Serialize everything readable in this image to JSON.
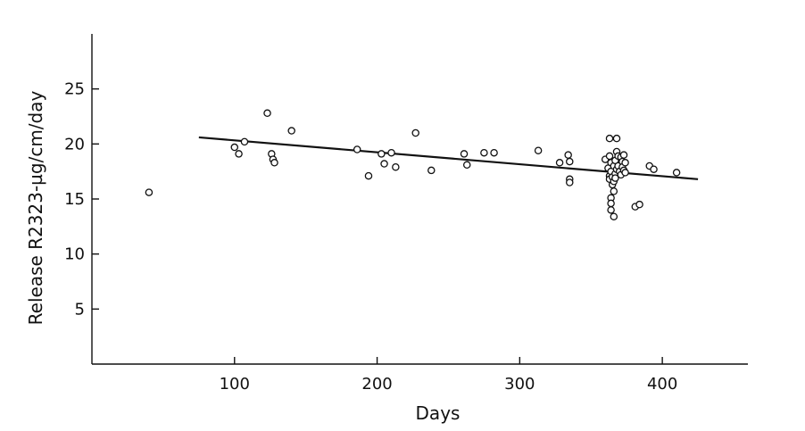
{
  "chart_data": {
    "type": "scatter",
    "title": "",
    "xlabel": "Days",
    "ylabel": "Release R2323-µg/cm/day",
    "xlim": [
      0,
      460
    ],
    "ylim": [
      0,
      30
    ],
    "xticks": [
      100,
      200,
      300,
      400
    ],
    "yticks": [
      5,
      10,
      15,
      20,
      25
    ],
    "grid": false,
    "series": [
      {
        "points": [
          [
            40,
            15.6
          ],
          [
            100,
            19.7
          ],
          [
            103,
            19.1
          ],
          [
            107,
            20.2
          ],
          [
            123,
            22.8
          ],
          [
            126,
            19.1
          ],
          [
            127,
            18.6
          ],
          [
            128,
            18.3
          ],
          [
            140,
            21.2
          ],
          [
            186,
            19.5
          ],
          [
            194,
            17.1
          ],
          [
            203,
            19.1
          ],
          [
            205,
            18.2
          ],
          [
            210,
            19.2
          ],
          [
            213,
            17.9
          ],
          [
            227,
            21.0
          ],
          [
            238,
            17.6
          ],
          [
            261,
            19.1
          ],
          [
            263,
            18.1
          ],
          [
            275,
            19.2
          ],
          [
            282,
            19.2
          ],
          [
            313,
            19.4
          ],
          [
            328,
            18.3
          ],
          [
            334,
            19.0
          ],
          [
            335,
            18.4
          ],
          [
            335,
            16.8
          ],
          [
            335,
            16.5
          ],
          [
            360,
            18.6
          ],
          [
            362,
            17.8
          ],
          [
            363,
            20.5
          ],
          [
            363,
            18.9
          ],
          [
            363,
            17.1
          ],
          [
            363,
            16.8
          ],
          [
            364,
            18.3
          ],
          [
            364,
            17.5
          ],
          [
            364,
            15.1
          ],
          [
            364,
            14.6
          ],
          [
            364,
            14.0
          ],
          [
            365,
            17.0
          ],
          [
            365,
            16.3
          ],
          [
            366,
            18.0
          ],
          [
            366,
            16.6
          ],
          [
            366,
            15.7
          ],
          [
            366,
            13.4
          ],
          [
            367,
            18.5
          ],
          [
            367,
            17.3
          ],
          [
            367,
            16.9
          ],
          [
            368,
            20.5
          ],
          [
            368,
            19.3
          ],
          [
            368,
            17.7
          ],
          [
            369,
            18.9
          ],
          [
            369,
            18.0
          ],
          [
            370,
            17.5
          ],
          [
            371,
            18.8
          ],
          [
            371,
            17.2
          ],
          [
            372,
            18.4
          ],
          [
            372,
            17.9
          ],
          [
            373,
            19.0
          ],
          [
            373,
            17.6
          ],
          [
            374,
            18.3
          ],
          [
            374,
            17.4
          ],
          [
            381,
            14.3
          ],
          [
            384,
            14.5
          ],
          [
            391,
            18.0
          ],
          [
            394,
            17.7
          ],
          [
            410,
            17.4
          ]
        ]
      }
    ],
    "fit_line": {
      "x": [
        75,
        425
      ],
      "y": [
        20.6,
        16.8
      ]
    }
  }
}
